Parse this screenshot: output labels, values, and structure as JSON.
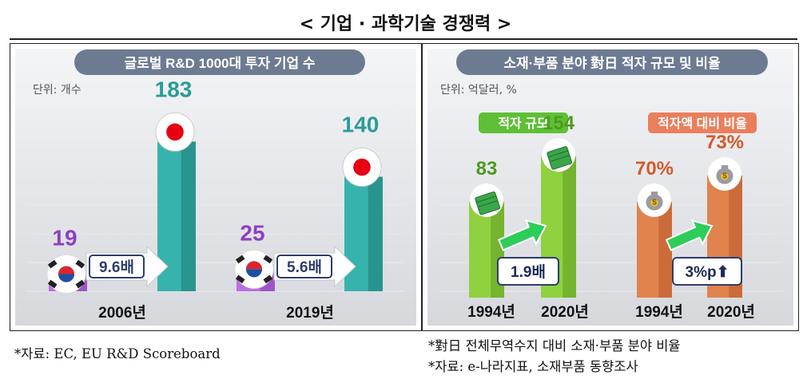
{
  "title": "< 기업 · 과학기술 경쟁력 >",
  "colors": {
    "purple": "#bb6ee0",
    "teal": "#36b3ad",
    "green": "#8fd13f",
    "orange": "#e0834d",
    "banner": "#6d7b92",
    "arrow_green": "#2ccd58"
  },
  "chart_data": [
    {
      "type": "bar",
      "title": "글로벌 R&D 1000대 투자 기업 수",
      "unit": "단위: 개수",
      "categories": [
        "2006년",
        "2019년"
      ],
      "series": [
        {
          "icon": "korea-flag-icon",
          "values": [
            19,
            25
          ]
        },
        {
          "icon": "japan-flag-icon",
          "values": [
            183,
            140
          ]
        }
      ],
      "ratios": [
        "9.6배",
        "5.6배"
      ],
      "ylim": [
        0,
        200
      ]
    },
    {
      "title": "소재·부품 분야 對日 적자 규모 및 비율",
      "unit": "단위: 억달러, %",
      "groups": [
        {
          "type": "bar",
          "label": "적자 규모",
          "categories": [
            "1994년",
            "2020년"
          ],
          "values": [
            83,
            154
          ],
          "value_labels": [
            "83",
            "154"
          ],
          "icon": "money-stack-icon",
          "change": "1.9배"
        },
        {
          "type": "bar",
          "label": "적자액 대비 비율",
          "categories": [
            "1994년",
            "2020년"
          ],
          "values": [
            70,
            73
          ],
          "value_labels": [
            "70%",
            "73%"
          ],
          "icon": "money-bag-icon",
          "change": "3%p⬆"
        }
      ]
    }
  ],
  "footnotes": {
    "left": "*자료: EC, EU R&D Scoreboard",
    "right_1": "*對日 전체무역수지 대비 소재·부품 분야 비율",
    "right_2": "*자료: e-나라지표, 소재부품 동향조사"
  }
}
